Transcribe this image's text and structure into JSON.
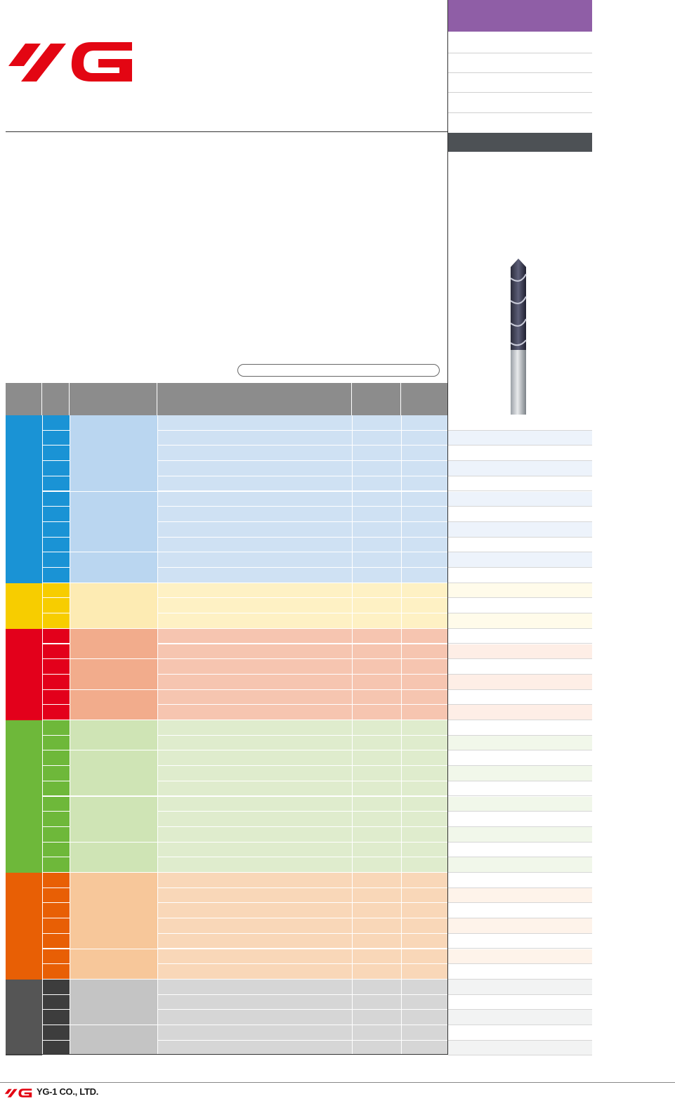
{
  "brand": {
    "logo_text": "YG",
    "logo_color": "#e30613",
    "footer_company": "YG-1 CO., LTD."
  },
  "colors": {
    "purple_header": "#8f5ea6",
    "dark_bar": "#4d5155",
    "group_P": "#1a93d5",
    "group_M": "#f7cd00",
    "group_K": "#e3001b",
    "group_N": "#6eb83a",
    "group_S": "#e85f05",
    "group_H": "#555555"
  },
  "icons": {
    "logo": "yg1-logo",
    "product": "carbide-drill-image"
  }
}
